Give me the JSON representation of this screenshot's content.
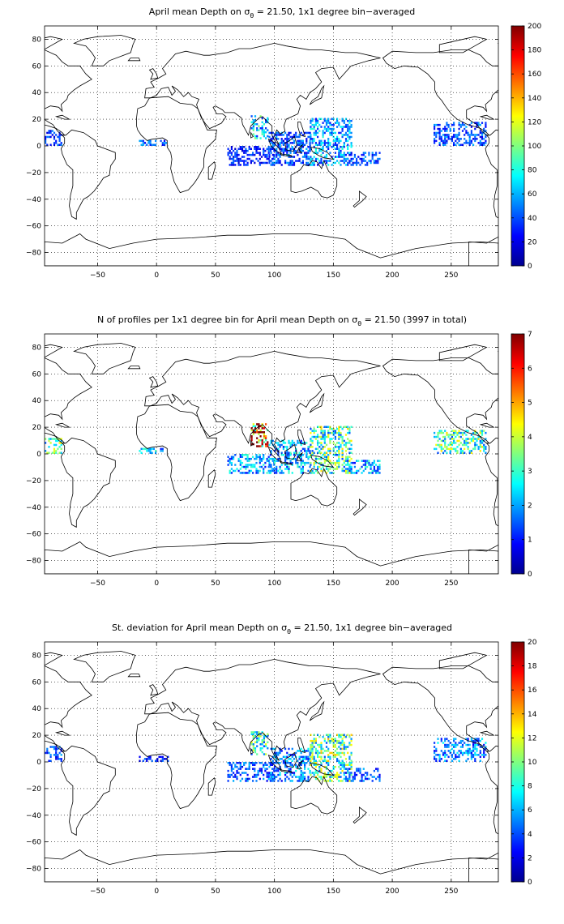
{
  "figure": {
    "panels": [
      {
        "title_pre": "April mean Depth on σ",
        "title_sub": "θ",
        "title_post": " = 21.50, 1x1 degree bin−averaged",
        "colorbar_ticks": [
          "0",
          "20",
          "40",
          "60",
          "80",
          "100",
          "120",
          "140",
          "160",
          "180",
          "200"
        ]
      },
      {
        "title_pre": "N of profiles per 1x1 degree bin for April mean Depth on σ",
        "title_sub": "θ",
        "title_post": " = 21.50 (3997 in total)",
        "colorbar_ticks": [
          "0",
          "1",
          "2",
          "3",
          "4",
          "5",
          "6",
          "7"
        ]
      },
      {
        "title_pre": "St. deviation for April mean Depth on σ",
        "title_sub": "θ",
        "title_post": " = 21.50, 1x1 degree bin−averaged",
        "colorbar_ticks": [
          "0",
          "2",
          "4",
          "6",
          "8",
          "10",
          "12",
          "14",
          "16",
          "18",
          "20"
        ]
      }
    ],
    "x_ticks": [
      "−50",
      "0",
      "50",
      "100",
      "150",
      "200",
      "250"
    ],
    "y_ticks": [
      "80",
      "60",
      "40",
      "20",
      "0",
      "−20",
      "−40",
      "−60",
      "−80"
    ]
  },
  "chart_data": [
    {
      "type": "heatmap",
      "title": "April mean Depth on σθ = 21.50, 1x1 degree bin−averaged",
      "xlim": [
        -95,
        290
      ],
      "ylim": [
        -90,
        90
      ],
      "x_ticks": [
        -50,
        0,
        50,
        100,
        150,
        200,
        250
      ],
      "y_ticks": [
        80,
        60,
        40,
        20,
        0,
        -20,
        -40,
        -60,
        -80
      ],
      "grid": true,
      "colormap": "jet",
      "clim": [
        0,
        200
      ],
      "colorbar_ticks": [
        0,
        20,
        40,
        60,
        80,
        100,
        120,
        140,
        160,
        180,
        200
      ],
      "data_regions": [
        {
          "lon": [
            -95,
            -80
          ],
          "lat": [
            0,
            12
          ],
          "value": 35
        },
        {
          "lon": [
            -15,
            10
          ],
          "lat": [
            0,
            4
          ],
          "value": 40
        },
        {
          "lon": [
            60,
            100
          ],
          "lat": [
            -15,
            0
          ],
          "value": 30
        },
        {
          "lon": [
            80,
            95
          ],
          "lat": [
            5,
            22
          ],
          "value": 70
        },
        {
          "lon": [
            95,
            130
          ],
          "lat": [
            -15,
            10
          ],
          "value": 40
        },
        {
          "lon": [
            130,
            165
          ],
          "lat": [
            -15,
            20
          ],
          "value": 55
        },
        {
          "lon": [
            160,
            190
          ],
          "lat": [
            -15,
            -5
          ],
          "value": 40
        },
        {
          "lon": [
            235,
            280
          ],
          "lat": [
            0,
            18
          ],
          "value": 40
        }
      ]
    },
    {
      "type": "heatmap",
      "title": "N of profiles per 1x1 degree bin for April mean Depth on σθ = 21.50 (3997 in total)",
      "xlim": [
        -95,
        290
      ],
      "ylim": [
        -90,
        90
      ],
      "x_ticks": [
        -50,
        0,
        50,
        100,
        150,
        200,
        250
      ],
      "y_ticks": [
        80,
        60,
        40,
        20,
        0,
        -20,
        -40,
        -60,
        -80
      ],
      "grid": true,
      "colormap": "jet",
      "clim": [
        0,
        7
      ],
      "colorbar_ticks": [
        0,
        1,
        2,
        3,
        4,
        5,
        6,
        7
      ],
      "total_profiles": 3997,
      "data_regions": [
        {
          "lon": [
            -95,
            -80
          ],
          "lat": [
            0,
            12
          ],
          "value": 3
        },
        {
          "lon": [
            -15,
            10
          ],
          "lat": [
            0,
            4
          ],
          "value": 2
        },
        {
          "lon": [
            60,
            100
          ],
          "lat": [
            -15,
            0
          ],
          "value": 2
        },
        {
          "lon": [
            80,
            95
          ],
          "lat": [
            5,
            22
          ],
          "value": 6
        },
        {
          "lon": [
            95,
            130
          ],
          "lat": [
            -15,
            10
          ],
          "value": 2
        },
        {
          "lon": [
            130,
            165
          ],
          "lat": [
            -15,
            20
          ],
          "value": 3
        },
        {
          "lon": [
            160,
            190
          ],
          "lat": [
            -15,
            -5
          ],
          "value": 2
        },
        {
          "lon": [
            235,
            280
          ],
          "lat": [
            0,
            18
          ],
          "value": 3
        }
      ]
    },
    {
      "type": "heatmap",
      "title": "St. deviation for April mean Depth on σθ = 21.50, 1x1 degree bin−averaged",
      "xlim": [
        -95,
        290
      ],
      "ylim": [
        -90,
        90
      ],
      "x_ticks": [
        -50,
        0,
        50,
        100,
        150,
        200,
        250
      ],
      "y_ticks": [
        80,
        60,
        40,
        20,
        0,
        -20,
        -40,
        -60,
        -80
      ],
      "grid": true,
      "colormap": "jet",
      "clim": [
        0,
        20
      ],
      "colorbar_ticks": [
        0,
        2,
        4,
        6,
        8,
        10,
        12,
        14,
        16,
        18,
        20
      ],
      "data_regions": [
        {
          "lon": [
            -95,
            -80
          ],
          "lat": [
            0,
            12
          ],
          "value": 4
        },
        {
          "lon": [
            -15,
            10
          ],
          "lat": [
            0,
            4
          ],
          "value": 3
        },
        {
          "lon": [
            60,
            100
          ],
          "lat": [
            -15,
            0
          ],
          "value": 4
        },
        {
          "lon": [
            80,
            95
          ],
          "lat": [
            5,
            22
          ],
          "value": 8
        },
        {
          "lon": [
            95,
            130
          ],
          "lat": [
            -15,
            10
          ],
          "value": 5
        },
        {
          "lon": [
            130,
            165
          ],
          "lat": [
            -15,
            20
          ],
          "value": 9
        },
        {
          "lon": [
            160,
            190
          ],
          "lat": [
            -15,
            -5
          ],
          "value": 4
        },
        {
          "lon": [
            235,
            280
          ],
          "lat": [
            0,
            18
          ],
          "value": 5
        }
      ]
    }
  ]
}
